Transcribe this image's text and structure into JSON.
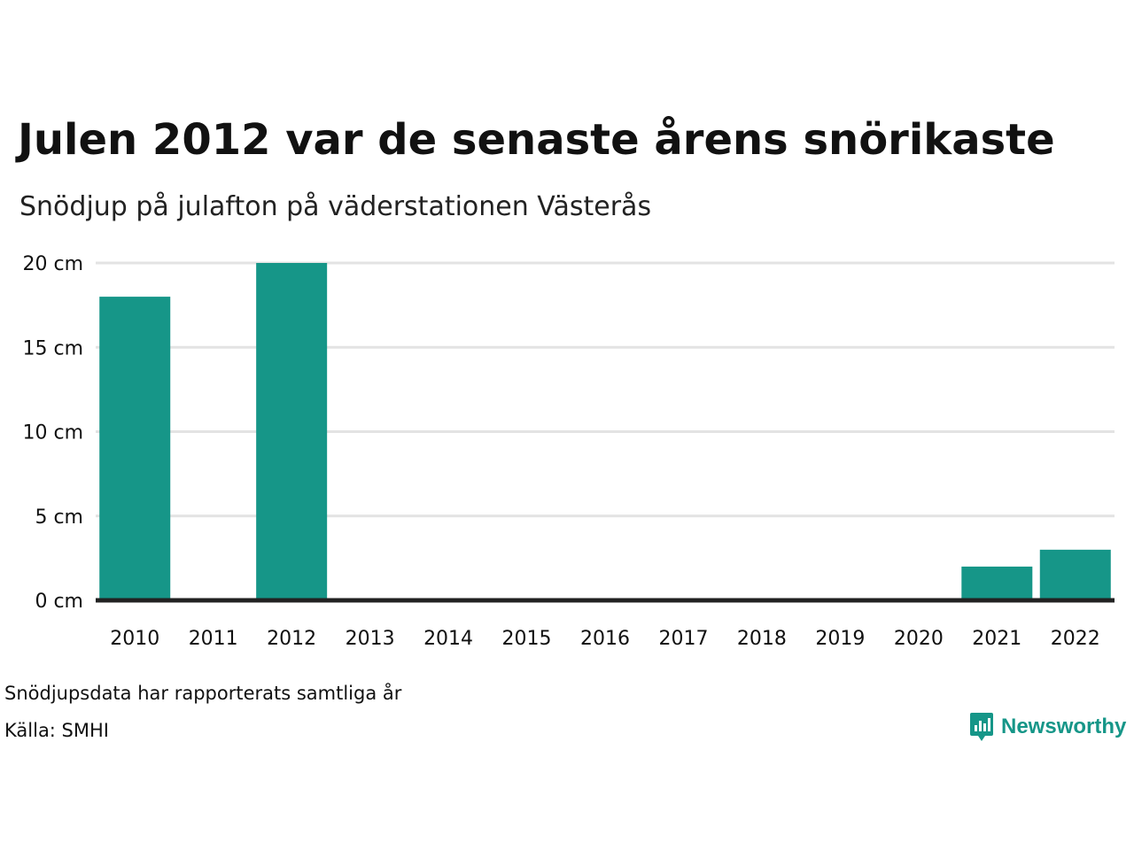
{
  "title": "Julen 2012 var de senaste årens snörikaste",
  "subtitle": "Snödjup på julafton på väderstationen Västerås",
  "footnote": "Snödjupsdata har rapporterats samtliga år",
  "source": "Källa: SMHI",
  "brand": {
    "name": "Newsworthy",
    "icon": "newsworthy-logo-icon",
    "color": "#169688"
  },
  "colors": {
    "bar": "#169688",
    "grid": "#e3e3e3",
    "baseline": "#222222"
  },
  "chart_data": {
    "type": "bar",
    "categories": [
      "2010",
      "2011",
      "2012",
      "2013",
      "2014",
      "2015",
      "2016",
      "2017",
      "2018",
      "2019",
      "2020",
      "2021",
      "2022"
    ],
    "values": [
      18,
      0,
      20,
      0,
      0,
      0,
      0,
      0,
      0,
      0,
      0,
      2,
      3
    ],
    "ylim": [
      0,
      20
    ],
    "yticks": [
      0,
      5,
      10,
      15,
      20
    ],
    "ytick_labels": [
      "0 cm",
      "5 cm",
      "10 cm",
      "15 cm",
      "20 cm"
    ],
    "grid": true,
    "legend": "none"
  }
}
